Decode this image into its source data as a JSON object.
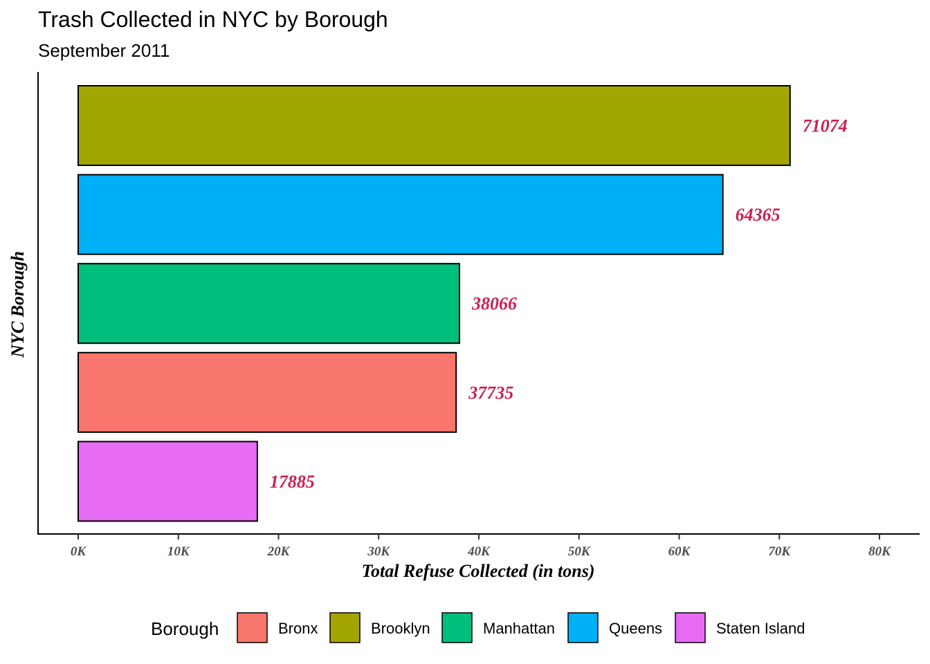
{
  "chart_data": {
    "type": "bar",
    "orientation": "horizontal",
    "title": "Trash Collected in NYC by Borough",
    "subtitle": "September 2011",
    "xlabel": "Total Refuse Collected (in tons)",
    "ylabel": "NYC Borough",
    "xlim": [
      0,
      80000
    ],
    "x_ticks": [
      0,
      10000,
      20000,
      30000,
      40000,
      50000,
      60000,
      70000,
      80000
    ],
    "x_tick_labels": [
      "0K",
      "10K",
      "20K",
      "30K",
      "40K",
      "50K",
      "60K",
      "70K",
      "80K"
    ],
    "grid": false,
    "legend_position": "bottom",
    "legend_title": "Borough",
    "categories_top_to_bottom": [
      "Brooklyn",
      "Queens",
      "Manhattan",
      "Bronx",
      "Staten Island"
    ],
    "values_top_to_bottom": [
      71074,
      64365,
      38066,
      37735,
      17885
    ],
    "data_labels": [
      "71074",
      "64365",
      "38066",
      "37735",
      "17885"
    ],
    "legend": [
      {
        "name": "Bronx",
        "color": "#f8766d"
      },
      {
        "name": "Brooklyn",
        "color": "#a3a500"
      },
      {
        "name": "Manhattan",
        "color": "#00bf7d"
      },
      {
        "name": "Queens",
        "color": "#00b0f6"
      },
      {
        "name": "Staten Island",
        "color": "#e76bf3"
      }
    ],
    "label_color": "#cc1f4e"
  }
}
